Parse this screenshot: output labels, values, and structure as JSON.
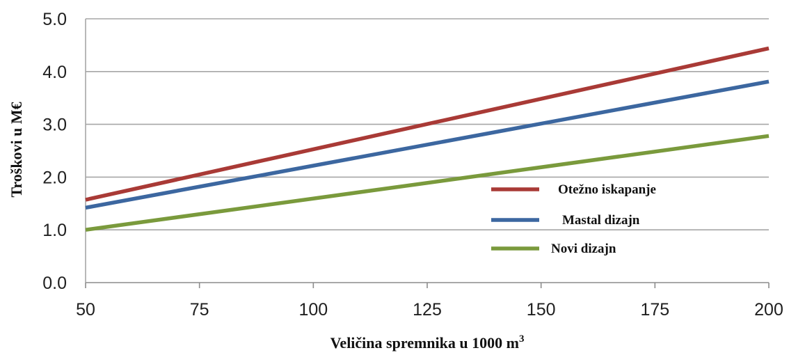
{
  "chart_data": {
    "type": "line",
    "xlabel": "Veličina spremnika u 1000 m",
    "xlabel_sup": "3",
    "ylabel": "Troškovi u M€",
    "xlim": [
      50,
      200
    ],
    "ylim": [
      0,
      5
    ],
    "x_ticks": [
      50,
      75,
      100,
      125,
      150,
      175,
      200
    ],
    "y_ticks": [
      "0.0",
      "1.0",
      "2.0",
      "3.0",
      "4.0",
      "5.0"
    ],
    "grid": "horizontal",
    "legend_position": "lower-right",
    "series": [
      {
        "name": "Otežno iskapanje",
        "color": "#a93a36",
        "x": [
          50,
          200
        ],
        "y": [
          1.57,
          4.44
        ]
      },
      {
        "name": "Mastal dizajn",
        "color": "#3c67a0",
        "x": [
          50,
          200
        ],
        "y": [
          1.42,
          3.81
        ]
      },
      {
        "name": "Novi dizajn",
        "color": "#7a9a3c",
        "x": [
          50,
          200
        ],
        "y": [
          1.0,
          2.78
        ]
      }
    ]
  }
}
